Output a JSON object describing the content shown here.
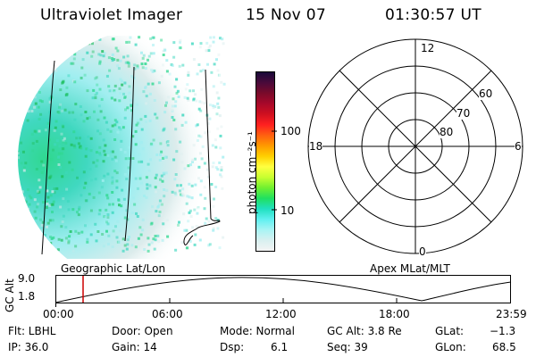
{
  "header": {
    "instrument": "Ultraviolet Imager",
    "date": "15 Nov 07",
    "time": "01:30:57 UT"
  },
  "colorbar": {
    "unit_label": "photon cm⁻²s⁻¹",
    "ticks": [
      "100",
      "10"
    ],
    "colors": [
      "#1a0a3a",
      "#4a0a3a",
      "#7a0a2a",
      "#a8082a",
      "#d01020",
      "#ff2020",
      "#ff6010",
      "#ff9a00",
      "#ffd000",
      "#ffff40",
      "#c8ff30",
      "#70f030",
      "#20e060",
      "#20e0c0",
      "#60f0f0",
      "#a8f4f4",
      "#d8f0f0",
      "#f4f4f4"
    ]
  },
  "polar": {
    "labels": {
      "top": "12",
      "left": "18",
      "right": "6",
      "bottom": "0"
    },
    "rings": [
      "60",
      "70",
      "80"
    ]
  },
  "timeline": {
    "left_label": "Geographic Lat/Lon",
    "right_label": "Apex MLat/MLT",
    "axis_title": "GC Alt",
    "y_ticks": [
      "9.0",
      "1.8"
    ],
    "x_ticks": [
      "00:00",
      "06:00",
      "12:00",
      "18:00",
      "23:59"
    ],
    "marker_color": "#cc0000"
  },
  "info": {
    "flt": "Flt: LBHL",
    "ip": "IP: 36.0",
    "door": "Door: Open",
    "gain": "Gain: 14",
    "mode": "Mode: Normal",
    "dsp_label": "Dsp:",
    "dsp_value": "6.1",
    "gcalt": "GC Alt: 3.8 Re",
    "seq": "Seq: 39",
    "glat_label": "GLat:",
    "glat_value": "−1.3",
    "glon_label": "GLon:",
    "glon_value": "68.5"
  }
}
